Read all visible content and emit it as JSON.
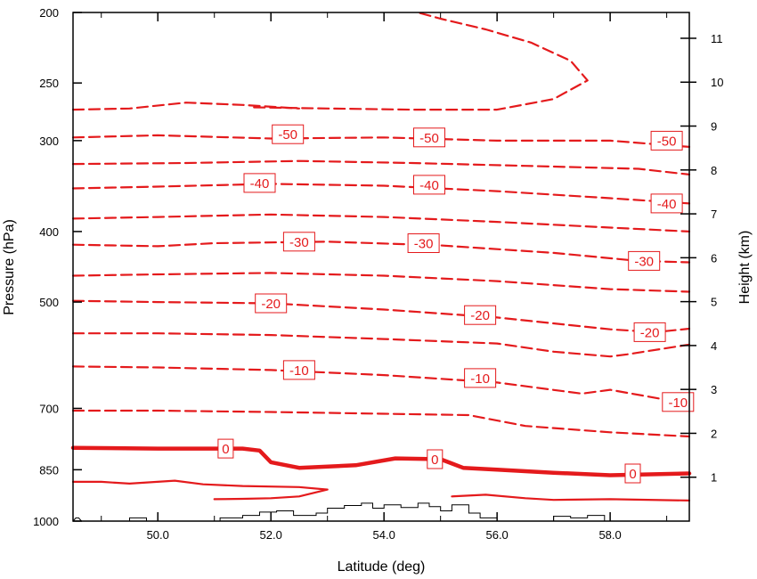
{
  "chart_data": {
    "type": "line",
    "title": "",
    "xlabel": "Latitude (deg)",
    "ylabel": "Pressure (hPa)",
    "y2label": "Height (km)",
    "xlim": [
      48.5,
      59.4
    ],
    "ylim_pressure": [
      1000,
      200
    ],
    "y_scale": "log",
    "x_ticks": [
      50.0,
      52.0,
      54.0,
      56.0,
      58.0
    ],
    "x_tick_labels": [
      "50.0",
      "52.0",
      "54.0",
      "56.0",
      "58.0"
    ],
    "y_ticks": [
      200,
      250,
      300,
      400,
      500,
      700,
      850,
      1000
    ],
    "y_tick_labels": [
      "200",
      "250",
      "300",
      "400",
      "500",
      "700",
      "850",
      "1000"
    ],
    "y2_ticks": [
      1,
      2,
      3,
      4,
      5,
      6,
      7,
      8,
      9,
      10,
      11
    ],
    "y2_tick_labels": [
      "1",
      "2",
      "3",
      "4",
      "5",
      "6",
      "7",
      "8",
      "9",
      "10",
      "11"
    ],
    "grid": false,
    "colors": {
      "contour": "#e41a1c",
      "terrain": "#000000",
      "axes": "#000000"
    },
    "contours": [
      {
        "level": -55,
        "style": "dashed",
        "points": [
          [
            51.7,
            270
          ],
          [
            53.0,
            271
          ],
          [
            54.5,
            272
          ],
          [
            56.0,
            272
          ],
          [
            57.0,
            263
          ],
          [
            57.6,
            248
          ],
          [
            57.3,
            233
          ],
          [
            56.6,
            220
          ],
          [
            55.8,
            211
          ],
          [
            55.0,
            204
          ],
          [
            54.6,
            200
          ]
        ]
      },
      {
        "level": -55,
        "style": "dashed",
        "points": [
          [
            48.5,
            272
          ],
          [
            49.5,
            271
          ],
          [
            50.5,
            266
          ],
          [
            51.5,
            268
          ],
          [
            52.5,
            271
          ]
        ]
      },
      {
        "level": -50,
        "style": "dashed",
        "points": [
          [
            48.5,
            297
          ],
          [
            50.0,
            295
          ],
          [
            52.0,
            298
          ],
          [
            54.0,
            297
          ],
          [
            56.0,
            300
          ],
          [
            58.0,
            300
          ],
          [
            59.4,
            306
          ]
        ]
      },
      {
        "level": -45,
        "style": "dashed",
        "points": [
          [
            48.5,
            323
          ],
          [
            50.5,
            322
          ],
          [
            52.5,
            320
          ],
          [
            54.5,
            322
          ],
          [
            56.5,
            325
          ],
          [
            58.5,
            328
          ],
          [
            59.4,
            334
          ]
        ]
      },
      {
        "level": -40,
        "style": "dashed",
        "points": [
          [
            48.5,
            349
          ],
          [
            50.0,
            347
          ],
          [
            52.0,
            344
          ],
          [
            54.0,
            346
          ],
          [
            56.0,
            352
          ],
          [
            58.0,
            360
          ],
          [
            59.4,
            366
          ]
        ]
      },
      {
        "level": -35,
        "style": "dashed",
        "points": [
          [
            48.5,
            384
          ],
          [
            50.0,
            382
          ],
          [
            52.0,
            379
          ],
          [
            54.0,
            382
          ],
          [
            56.0,
            388
          ],
          [
            58.0,
            395
          ],
          [
            59.4,
            400
          ]
        ]
      },
      {
        "level": -30,
        "style": "dashed",
        "points": [
          [
            48.5,
            417
          ],
          [
            50.0,
            419
          ],
          [
            51.0,
            415
          ],
          [
            53.0,
            413
          ],
          [
            55.0,
            418
          ],
          [
            57.0,
            428
          ],
          [
            58.5,
            439
          ],
          [
            59.4,
            441
          ]
        ]
      },
      {
        "level": -25,
        "style": "dashed",
        "points": [
          [
            48.5,
            460
          ],
          [
            50.0,
            458
          ],
          [
            52.0,
            456
          ],
          [
            54.0,
            460
          ],
          [
            56.0,
            468
          ],
          [
            58.0,
            480
          ],
          [
            59.4,
            484
          ]
        ]
      },
      {
        "level": -20,
        "style": "dashed",
        "points": [
          [
            48.5,
            498
          ],
          [
            50.0,
            500
          ],
          [
            52.0,
            502
          ],
          [
            54.0,
            512
          ],
          [
            56.0,
            525
          ],
          [
            58.0,
            545
          ],
          [
            58.8,
            550
          ],
          [
            59.4,
            544
          ]
        ]
      },
      {
        "level": -15,
        "style": "dashed",
        "points": [
          [
            48.5,
            552
          ],
          [
            50.0,
            552
          ],
          [
            52.0,
            555
          ],
          [
            54.0,
            562
          ],
          [
            56.0,
            570
          ],
          [
            57.0,
            585
          ],
          [
            58.0,
            594
          ],
          [
            58.3,
            590
          ],
          [
            59.4,
            572
          ]
        ]
      },
      {
        "level": -10,
        "style": "dashed",
        "points": [
          [
            48.5,
            613
          ],
          [
            50.0,
            615
          ],
          [
            52.0,
            620
          ],
          [
            54.0,
            630
          ],
          [
            56.0,
            645
          ],
          [
            57.5,
            668
          ],
          [
            58.0,
            660
          ],
          [
            59.4,
            690
          ]
        ]
      },
      {
        "level": -5,
        "style": "dashed",
        "points": [
          [
            48.5,
            705
          ],
          [
            50.0,
            705
          ],
          [
            52.0,
            708
          ],
          [
            54.0,
            712
          ],
          [
            55.5,
            715
          ],
          [
            56.5,
            740
          ],
          [
            58.0,
            755
          ],
          [
            59.4,
            765
          ]
        ]
      },
      {
        "level": 0,
        "style": "thick",
        "points": [
          [
            48.5,
            793
          ],
          [
            50.0,
            795
          ],
          [
            51.5,
            795
          ],
          [
            51.8,
            800
          ],
          [
            52.0,
            830
          ],
          [
            52.5,
            845
          ],
          [
            53.5,
            838
          ],
          [
            54.2,
            820
          ],
          [
            55.0,
            822
          ],
          [
            55.4,
            845
          ],
          [
            56.0,
            850
          ],
          [
            57.0,
            858
          ],
          [
            58.0,
            865
          ],
          [
            59.4,
            860
          ]
        ]
      },
      {
        "level": 5,
        "style": "solid",
        "points": [
          [
            48.5,
            883
          ],
          [
            49.0,
            883
          ],
          [
            49.5,
            888
          ],
          [
            50.3,
            880
          ],
          [
            50.8,
            890
          ],
          [
            51.5,
            895
          ],
          [
            52.5,
            898
          ],
          [
            53.0,
            905
          ],
          [
            52.5,
            925
          ],
          [
            52.0,
            930
          ],
          [
            51.5,
            932
          ],
          [
            51.0,
            933
          ]
        ]
      },
      {
        "level": 5,
        "style": "solid",
        "points": [
          [
            55.2,
            925
          ],
          [
            55.8,
            920
          ],
          [
            56.5,
            930
          ],
          [
            57.0,
            935
          ],
          [
            58.0,
            933
          ],
          [
            59.4,
            937
          ]
        ]
      }
    ],
    "contour_labels": [
      {
        "text": "-50",
        "lat": 52.3,
        "p": 294
      },
      {
        "text": "-50",
        "lat": 54.8,
        "p": 297
      },
      {
        "text": "-50",
        "lat": 59.0,
        "p": 300
      },
      {
        "text": "-40",
        "lat": 51.8,
        "p": 343
      },
      {
        "text": "-40",
        "lat": 54.8,
        "p": 345
      },
      {
        "text": "-40",
        "lat": 59.0,
        "p": 366
      },
      {
        "text": "-30",
        "lat": 52.5,
        "p": 413
      },
      {
        "text": "-30",
        "lat": 54.7,
        "p": 415
      },
      {
        "text": "-30",
        "lat": 58.6,
        "p": 439
      },
      {
        "text": "-20",
        "lat": 52.0,
        "p": 502
      },
      {
        "text": "-20",
        "lat": 55.7,
        "p": 521
      },
      {
        "text": "-20",
        "lat": 58.7,
        "p": 550
      },
      {
        "text": "-10",
        "lat": 52.5,
        "p": 620
      },
      {
        "text": "-10",
        "lat": 55.7,
        "p": 636
      },
      {
        "text": "-10",
        "lat": 59.2,
        "p": 686
      },
      {
        "text": "0",
        "lat": 51.2,
        "p": 795
      },
      {
        "text": "0",
        "lat": 54.9,
        "p": 822
      },
      {
        "text": "0",
        "lat": 58.4,
        "p": 860
      }
    ],
    "terrain": [
      [
        48.5,
        1000
      ],
      [
        48.55,
        990
      ],
      [
        48.6,
        990
      ],
      [
        48.65,
        1000
      ],
      [
        49.5,
        1000
      ],
      [
        49.5,
        990
      ],
      [
        49.8,
        990
      ],
      [
        49.8,
        1000
      ],
      [
        51.1,
        1000
      ],
      [
        51.1,
        990
      ],
      [
        51.5,
        990
      ],
      [
        51.5,
        982
      ],
      [
        51.8,
        982
      ],
      [
        51.8,
        972
      ],
      [
        52.1,
        972
      ],
      [
        52.1,
        968
      ],
      [
        52.4,
        968
      ],
      [
        52.4,
        982
      ],
      [
        52.8,
        982
      ],
      [
        52.8,
        975
      ],
      [
        53.0,
        975
      ],
      [
        53.0,
        960
      ],
      [
        53.3,
        960
      ],
      [
        53.3,
        952
      ],
      [
        53.6,
        952
      ],
      [
        53.6,
        945
      ],
      [
        53.8,
        945
      ],
      [
        53.8,
        960
      ],
      [
        54.0,
        960
      ],
      [
        54.0,
        950
      ],
      [
        54.3,
        950
      ],
      [
        54.3,
        958
      ],
      [
        54.6,
        958
      ],
      [
        54.6,
        945
      ],
      [
        54.8,
        945
      ],
      [
        54.8,
        955
      ],
      [
        55.0,
        955
      ],
      [
        55.0,
        968
      ],
      [
        55.2,
        968
      ],
      [
        55.2,
        950
      ],
      [
        55.5,
        950
      ],
      [
        55.5,
        975
      ],
      [
        55.7,
        975
      ],
      [
        55.7,
        990
      ],
      [
        56.0,
        990
      ],
      [
        56.0,
        1000
      ],
      [
        57.0,
        1000
      ],
      [
        57.0,
        985
      ],
      [
        57.3,
        985
      ],
      [
        57.3,
        990
      ],
      [
        57.6,
        990
      ],
      [
        57.6,
        982
      ],
      [
        57.9,
        982
      ],
      [
        57.9,
        1000
      ],
      [
        58.1,
        1000
      ]
    ]
  }
}
